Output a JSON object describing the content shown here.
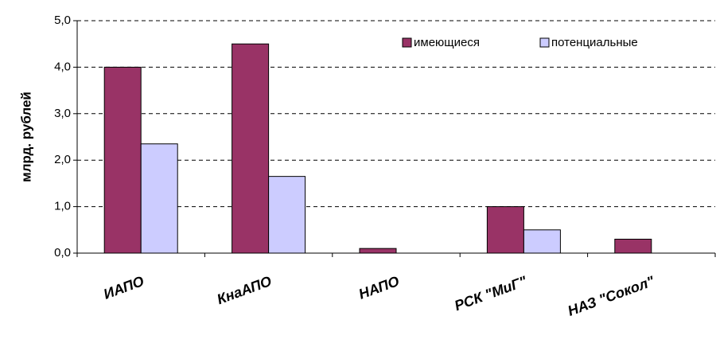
{
  "chart_data": {
    "type": "bar",
    "y_label": "млрд. рублей",
    "categories": [
      "ИАПО",
      "КнаАПО",
      "НАПО",
      "РСК \"МиГ\"",
      "НАЗ \"Сокол\""
    ],
    "series": [
      {
        "name": "имеющиеся",
        "color": "#993366",
        "values": [
          4.0,
          4.5,
          0.1,
          1.0,
          0.3
        ]
      },
      {
        "name": "потенциальные",
        "color": "#ccccff",
        "values": [
          2.35,
          1.65,
          null,
          0.5,
          null
        ]
      }
    ],
    "ylim": [
      0,
      5
    ],
    "yticks": [
      {
        "value": 0,
        "label": "0,0"
      },
      {
        "value": 1,
        "label": "1,0"
      },
      {
        "value": 2,
        "label": "2,0"
      },
      {
        "value": 3,
        "label": "3,0"
      },
      {
        "value": 4,
        "label": "4,0"
      },
      {
        "value": 5,
        "label": "5,0"
      }
    ],
    "grid": true,
    "legend": "top-right"
  }
}
